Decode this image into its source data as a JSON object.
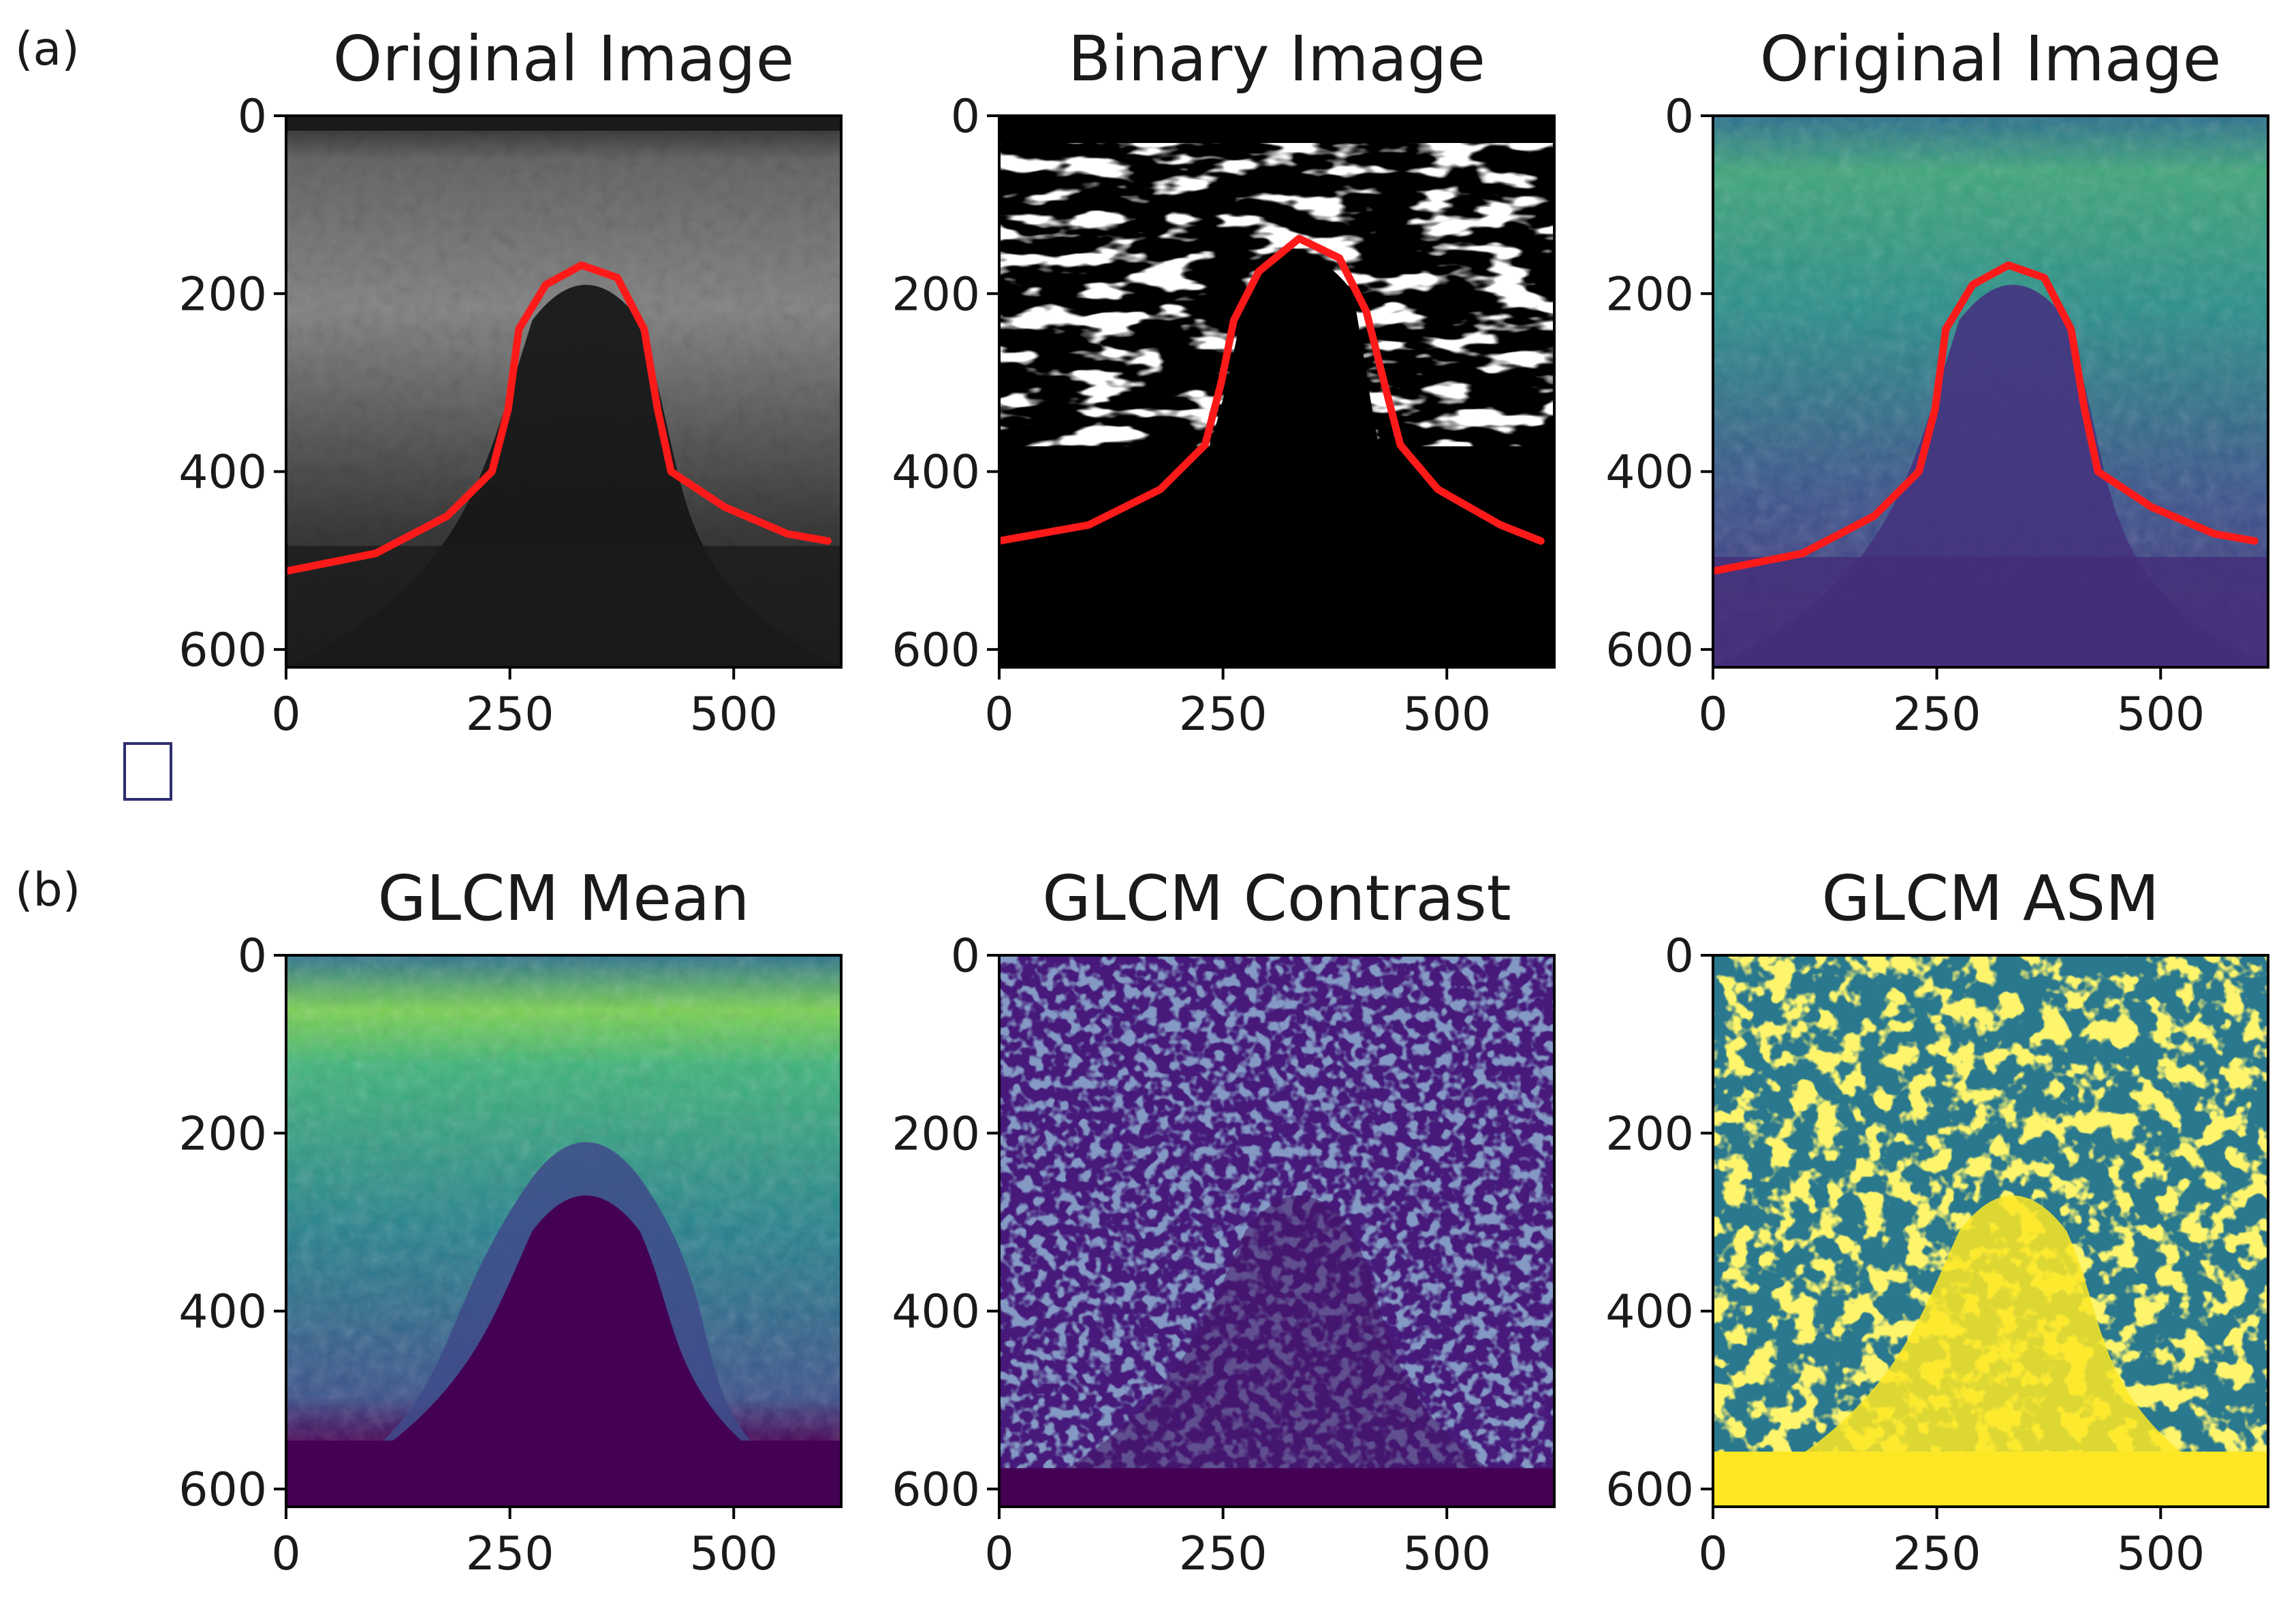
{
  "figure": {
    "labels": {
      "a": "(a)",
      "b": "(b)"
    },
    "panels": [
      {
        "id": "original-gray",
        "title": "Original Image",
        "style": "gray",
        "contour": "a"
      },
      {
        "id": "binary",
        "title": "Binary Image",
        "style": "binary",
        "contour": "b"
      },
      {
        "id": "original-viridis",
        "title": "Original Image",
        "style": "viridis-orig",
        "contour": "a"
      },
      {
        "id": "glcm-mean",
        "title": "GLCM Mean",
        "style": "glcm-mean",
        "contour": ""
      },
      {
        "id": "glcm-contrast",
        "title": "GLCM Contrast",
        "style": "glcm-contrast",
        "contour": ""
      },
      {
        "id": "glcm-asm",
        "title": "GLCM ASM",
        "style": "glcm-asm",
        "contour": ""
      }
    ],
    "xticks": [
      "0",
      "250",
      "500"
    ],
    "yticks": [
      "0",
      "200",
      "400",
      "600"
    ],
    "colors": {
      "contour": "#ff1a1a",
      "viridis_dark": "#440154",
      "viridis_mid": "#21908d",
      "viridis_light": "#5ec962",
      "viridis_yellow": "#fde725"
    }
  },
  "chart_data": [
    {
      "type": "heatmap",
      "title": "Original Image",
      "xlim": [
        0,
        620
      ],
      "ylim": [
        620,
        0
      ],
      "xticks": [
        0,
        250,
        500
      ],
      "yticks": [
        0,
        200,
        400,
        600
      ]
    },
    {
      "type": "heatmap",
      "title": "Binary Image",
      "xlim": [
        0,
        620
      ],
      "ylim": [
        620,
        0
      ],
      "xticks": [
        0,
        250,
        500
      ],
      "yticks": [
        0,
        200,
        400,
        600
      ]
    },
    {
      "type": "heatmap",
      "title": "Original Image",
      "xlim": [
        0,
        620
      ],
      "ylim": [
        620,
        0
      ],
      "xticks": [
        0,
        250,
        500
      ],
      "yticks": [
        0,
        200,
        400,
        600
      ]
    },
    {
      "type": "heatmap",
      "title": "GLCM Mean",
      "xlim": [
        0,
        620
      ],
      "ylim": [
        620,
        0
      ],
      "xticks": [
        0,
        250,
        500
      ],
      "yticks": [
        0,
        200,
        400,
        600
      ]
    },
    {
      "type": "heatmap",
      "title": "GLCM Contrast",
      "xlim": [
        0,
        620
      ],
      "ylim": [
        620,
        0
      ],
      "xticks": [
        0,
        250,
        500
      ],
      "yticks": [
        0,
        200,
        400,
        600
      ]
    },
    {
      "type": "heatmap",
      "title": "GLCM ASM",
      "xlim": [
        0,
        620
      ],
      "ylim": [
        620,
        0
      ],
      "xticks": [
        0,
        250,
        500
      ],
      "yticks": [
        0,
        200,
        400,
        600
      ]
    }
  ]
}
